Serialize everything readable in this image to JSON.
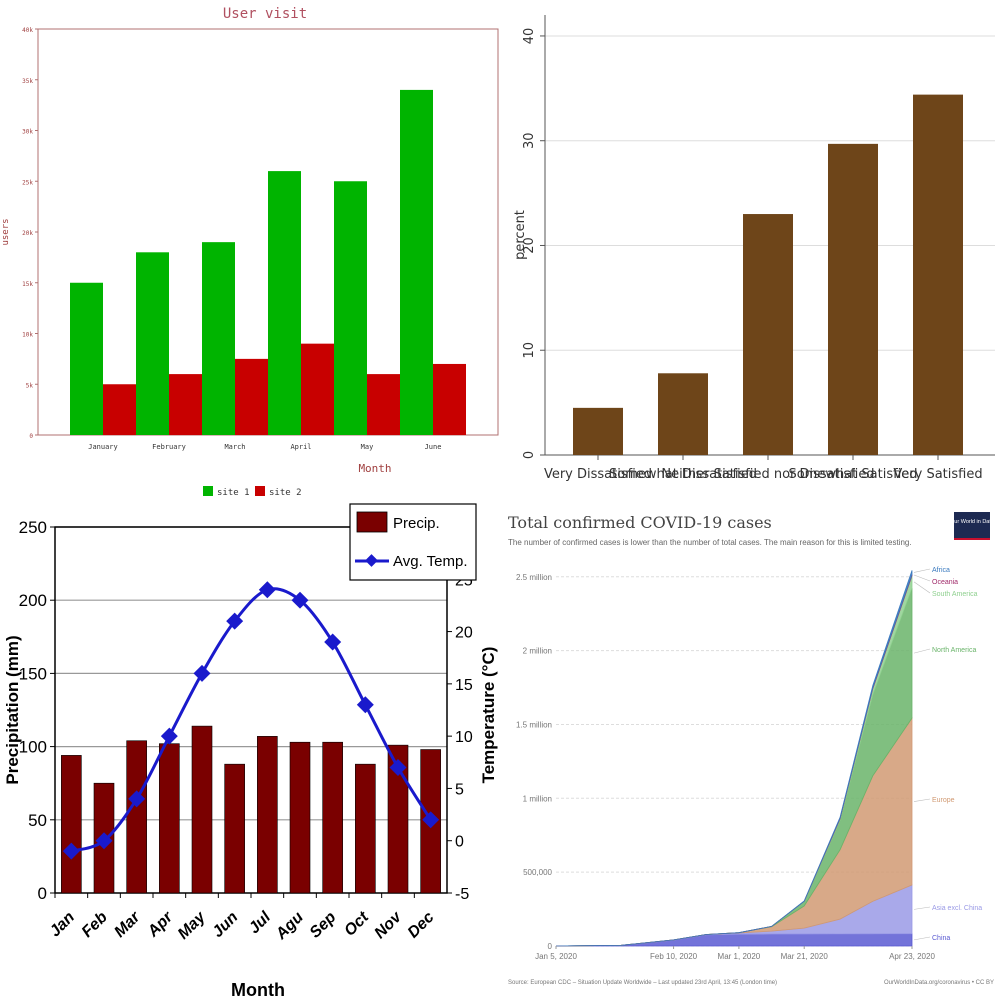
{
  "chart_data": [
    {
      "type": "bar",
      "title": "User visit",
      "xlabel": "Month",
      "ylabel": "users",
      "categories": [
        "January",
        "February",
        "March",
        "April",
        "May",
        "June"
      ],
      "series": [
        {
          "name": "site 1",
          "values": [
            15,
            18,
            19,
            26,
            25,
            34
          ]
        },
        {
          "name": "site 2",
          "values": [
            5,
            6,
            7.5,
            9,
            6,
            7
          ]
        }
      ],
      "ylim": [
        0,
        40
      ],
      "yticks": [
        "0",
        "5k",
        "10k",
        "15k",
        "20k",
        "25k",
        "30k",
        "35k",
        "40k"
      ],
      "colors": [
        "#00b400",
        "#c80000"
      ],
      "legend_position": "bottom",
      "grid": false
    },
    {
      "type": "bar",
      "title": "",
      "xlabel": "",
      "ylabel": "percent",
      "categories": [
        "Very Dissatisfied",
        "Somewhat Dissatisfied",
        "Neither Satisfied nor Dissatisfied",
        "Somewhat Satisfied",
        "Very Satisfied"
      ],
      "values": [
        4.5,
        7.8,
        23,
        29.7,
        34.4
      ],
      "ylim": [
        0,
        42
      ],
      "yticks": [
        0,
        10,
        20,
        30,
        40
      ],
      "color": "#6e4519",
      "grid": true
    },
    {
      "type": "bar+line",
      "title": "",
      "xlabel": "Month",
      "ylabel": "Precipitation (mm)",
      "y2label": "Temperature (°C)",
      "categories": [
        "Jan",
        "Feb",
        "Mar",
        "Apr",
        "May",
        "Jun",
        "Jul",
        "Agu",
        "Sep",
        "Oct",
        "Nov",
        "Dec"
      ],
      "series": [
        {
          "name": "Precip.",
          "type": "bar",
          "axis": "left",
          "values": [
            94,
            75,
            104,
            102,
            114,
            88,
            107,
            103,
            103,
            88,
            101,
            98
          ]
        },
        {
          "name": "Avg. Temp.",
          "type": "line",
          "axis": "right",
          "values": [
            -1,
            0,
            4,
            10,
            16,
            21,
            24,
            23,
            19,
            13,
            7,
            2
          ]
        }
      ],
      "ylim": [
        0,
        250
      ],
      "yticks": [
        0,
        50,
        100,
        150,
        200,
        250
      ],
      "y2lim": [
        -5,
        30
      ],
      "y2ticks": [
        -5,
        0,
        5,
        10,
        15,
        20,
        25
      ],
      "colors": [
        "#7a0000",
        "#1a1acc"
      ],
      "legend_position": "top-right",
      "grid": true
    },
    {
      "type": "area",
      "stacked": true,
      "title": "Total confirmed COVID-19 cases",
      "subtitle": "The number of confirmed cases is lower than the number of total cases. The main reason for this is limited testing.",
      "logo": "Our World in Data",
      "source": "Source: European CDC – Situation Update Worldwide – Last updated 23rd April, 13:45 (London time)",
      "url": "OurWorldInData.org/coronavirus • CC BY",
      "x": [
        "Jan 5, 2020",
        "Jan 25, 2020",
        "Feb 10, 2020",
        "Feb 20, 2020",
        "Mar 1, 2020",
        "Mar 11, 2020",
        "Mar 21, 2020",
        "Apr 1, 2020",
        "Apr 11, 2020",
        "Apr 23, 2020"
      ],
      "xticks": [
        "Jan 5, 2020",
        "Feb 10, 2020",
        "Mar 1, 2020",
        "Mar 21, 2020",
        "Apr 23, 2020"
      ],
      "series": [
        {
          "name": "China",
          "color": "#5a5ad2",
          "values": [
            0,
            5000,
            40000,
            75000,
            80000,
            81000,
            81500,
            82000,
            82500,
            83000
          ]
        },
        {
          "name": "Asia excl. China",
          "color": "#9a9ae6",
          "values": [
            0,
            0,
            1000,
            3000,
            8000,
            20000,
            40000,
            100000,
            220000,
            330000
          ]
        },
        {
          "name": "Europe",
          "color": "#d19a73",
          "values": [
            0,
            0,
            0,
            100,
            2000,
            30000,
            150000,
            470000,
            850000,
            1130000
          ]
        },
        {
          "name": "North America",
          "color": "#6ab46a",
          "values": [
            0,
            0,
            0,
            0,
            100,
            1500,
            30000,
            200000,
            550000,
            880000
          ]
        },
        {
          "name": "South America",
          "color": "#8fd08f",
          "values": [
            0,
            0,
            0,
            0,
            0,
            100,
            1000,
            10000,
            40000,
            85000
          ]
        },
        {
          "name": "Oceania",
          "color": "#a02a6a",
          "values": [
            0,
            0,
            0,
            0,
            0,
            50,
            1000,
            5000,
            7000,
            8000
          ]
        },
        {
          "name": "Africa",
          "color": "#3a7abf",
          "values": [
            0,
            0,
            0,
            0,
            0,
            100,
            1000,
            6000,
            14000,
            27000
          ]
        }
      ],
      "ylim": [
        0,
        2600000
      ],
      "yticks": [
        0,
        500000,
        1000000,
        1500000,
        2000000,
        2500000
      ],
      "ytick_labels": [
        "0",
        "500,000",
        "1 million",
        "1.5 million",
        "2 million",
        "2.5 million"
      ],
      "legend_position": "right",
      "grid": true
    }
  ]
}
